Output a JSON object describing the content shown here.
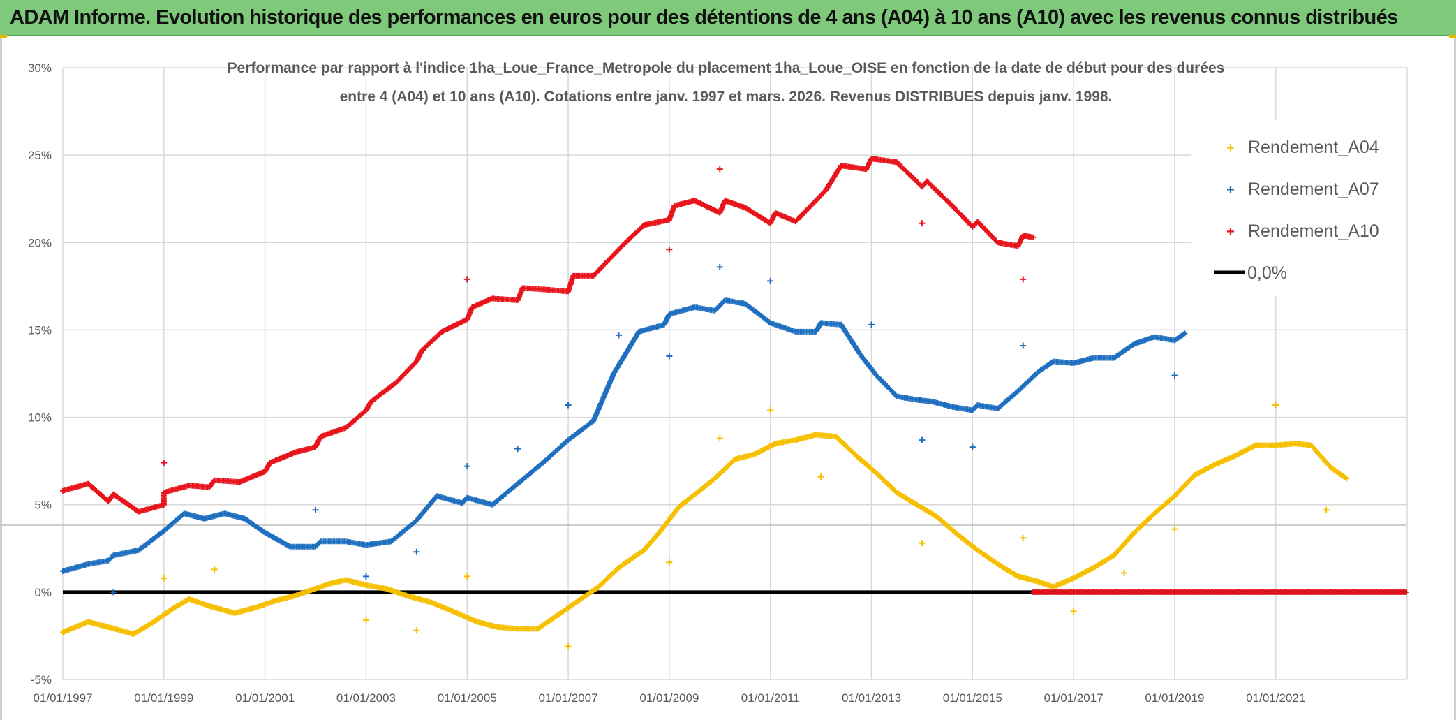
{
  "banner": {
    "title": "ADAM Informe. Evolution historique des performances en euros pour des détentions de 4 ans (A04) à 10 ans (A10) avec les revenus connus distribués"
  },
  "colors": {
    "banner_bg": "#7fc97a",
    "A04": "#f6c000",
    "A07": "#1f6fc0",
    "A10": "#e8141c",
    "zero_line": "#000000",
    "grid": "#d9d9d9"
  },
  "chart_data": {
    "type": "scatter",
    "title_line1": "Performance par rapport à l'indice 1ha_Loue_France_Metropole  du placement 1ha_Loue_OISE en fonction de la date de début pour des durées",
    "title_line2": "entre 4 (A04) et 10 ans (A10). Cotations entre janv. 1997 et mars. 2026. Revenus DISTRIBUES depuis janv. 1998.",
    "xlabel": "",
    "ylabel": "",
    "xlim": [
      1997.0,
      2023.6
    ],
    "ylim": [
      -5,
      30
    ],
    "x_ticks": [
      {
        "x": 1997,
        "label": "01/01/1997"
      },
      {
        "x": 1999,
        "label": "01/01/1999"
      },
      {
        "x": 2001,
        "label": "01/01/2001"
      },
      {
        "x": 2003,
        "label": "01/01/2003"
      },
      {
        "x": 2005,
        "label": "01/01/2005"
      },
      {
        "x": 2007,
        "label": "01/01/2007"
      },
      {
        "x": 2009,
        "label": "01/01/2009"
      },
      {
        "x": 2011,
        "label": "01/01/2011"
      },
      {
        "x": 2013,
        "label": "01/01/2013"
      },
      {
        "x": 2015,
        "label": "01/01/2015"
      },
      {
        "x": 2017,
        "label": "01/01/2017"
      },
      {
        "x": 2019,
        "label": "01/01/2019"
      },
      {
        "x": 2021,
        "label": "01/01/2021"
      }
    ],
    "y_ticks": [
      {
        "y": -5,
        "label": "-5%"
      },
      {
        "y": 0,
        "label": "0%"
      },
      {
        "y": 5,
        "label": "5%"
      },
      {
        "y": 10,
        "label": "10%"
      },
      {
        "y": 15,
        "label": "15%"
      },
      {
        "y": 20,
        "label": "20%"
      },
      {
        "y": 25,
        "label": "25%"
      },
      {
        "y": 30,
        "label": "30%"
      }
    ],
    "legend": {
      "position": "top-right",
      "entries": [
        {
          "label": "Rendement_A04",
          "series": "A04"
        },
        {
          "label": "Rendement_A07",
          "series": "A07"
        },
        {
          "label": "Rendement_A10",
          "series": "A10"
        },
        {
          "label": "0,0%",
          "series": "zero"
        }
      ]
    },
    "series": [
      {
        "name": "Rendement_A04",
        "key": "A04",
        "points": [
          [
            1997.0,
            -2.3
          ],
          [
            1997.5,
            -1.7
          ],
          [
            1997.9,
            -2.0
          ],
          [
            1998.4,
            -2.4
          ],
          [
            1998.8,
            -1.7
          ],
          [
            1999.2,
            -0.9
          ],
          [
            1999.5,
            -0.4
          ],
          [
            1999.9,
            -0.8
          ],
          [
            2000.4,
            -1.2
          ],
          [
            2000.8,
            -0.9
          ],
          [
            2001.2,
            -0.5
          ],
          [
            2001.6,
            -0.2
          ],
          [
            2002.0,
            0.2
          ],
          [
            2002.3,
            0.5
          ],
          [
            2002.6,
            0.7
          ],
          [
            2003.0,
            0.4
          ],
          [
            2003.4,
            0.2
          ],
          [
            2003.8,
            -0.2
          ],
          [
            2004.3,
            -0.6
          ],
          [
            2004.8,
            -1.2
          ],
          [
            2005.2,
            -1.7
          ],
          [
            2005.6,
            -2.0
          ],
          [
            2006.0,
            -2.1
          ],
          [
            2006.4,
            -2.1
          ],
          [
            2006.8,
            -1.3
          ],
          [
            2007.2,
            -0.5
          ],
          [
            2007.6,
            0.3
          ],
          [
            2008.0,
            1.4
          ],
          [
            2008.5,
            2.4
          ],
          [
            2008.8,
            3.4
          ],
          [
            2009.2,
            4.9
          ],
          [
            2009.6,
            5.8
          ],
          [
            2009.9,
            6.5
          ],
          [
            2010.3,
            7.6
          ],
          [
            2010.7,
            7.9
          ],
          [
            2011.1,
            8.5
          ],
          [
            2011.5,
            8.7
          ],
          [
            2011.9,
            9.0
          ],
          [
            2012.3,
            8.9
          ],
          [
            2012.7,
            7.8
          ],
          [
            2013.1,
            6.8
          ],
          [
            2013.5,
            5.7
          ],
          [
            2013.9,
            5.0
          ],
          [
            2014.3,
            4.3
          ],
          [
            2014.7,
            3.3
          ],
          [
            2015.1,
            2.4
          ],
          [
            2015.5,
            1.6
          ],
          [
            2015.9,
            0.9
          ],
          [
            2016.3,
            0.6
          ],
          [
            2016.6,
            0.3
          ],
          [
            2017.0,
            0.8
          ],
          [
            2017.4,
            1.4
          ],
          [
            2017.8,
            2.1
          ],
          [
            2018.2,
            3.4
          ],
          [
            2018.6,
            4.5
          ],
          [
            2019.0,
            5.5
          ],
          [
            2019.4,
            6.7
          ],
          [
            2019.8,
            7.3
          ],
          [
            2020.2,
            7.8
          ],
          [
            2020.6,
            8.4
          ],
          [
            2021.0,
            8.4
          ],
          [
            2021.4,
            8.5
          ],
          [
            2021.7,
            8.4
          ],
          [
            2022.1,
            7.1
          ],
          [
            2022.4,
            6.5
          ]
        ],
        "outliers": [
          [
            1999.0,
            0.8
          ],
          [
            2000.0,
            1.3
          ],
          [
            2003.0,
            -1.6
          ],
          [
            2004.0,
            -2.2
          ],
          [
            2005.0,
            0.9
          ],
          [
            2007.0,
            -3.1
          ],
          [
            2009.0,
            1.7
          ],
          [
            2010.0,
            8.8
          ],
          [
            2011.0,
            10.4
          ],
          [
            2012.0,
            6.6
          ],
          [
            2014.0,
            2.8
          ],
          [
            2016.0,
            3.1
          ],
          [
            2017.0,
            -1.1
          ],
          [
            2018.0,
            1.1
          ],
          [
            2019.0,
            3.6
          ],
          [
            2021.0,
            10.7
          ],
          [
            2022.0,
            4.7
          ]
        ]
      },
      {
        "name": "Rendement_A07",
        "key": "A07",
        "points": [
          [
            1997.0,
            1.2
          ],
          [
            1997.5,
            1.6
          ],
          [
            1997.9,
            1.8
          ],
          [
            1998.0,
            2.1
          ],
          [
            1998.5,
            2.4
          ],
          [
            1999.0,
            3.5
          ],
          [
            1999.4,
            4.5
          ],
          [
            1999.8,
            4.2
          ],
          [
            2000.2,
            4.5
          ],
          [
            2000.6,
            4.2
          ],
          [
            2001.0,
            3.4
          ],
          [
            2001.5,
            2.6
          ],
          [
            2002.0,
            2.6
          ],
          [
            2002.1,
            2.9
          ],
          [
            2002.6,
            2.9
          ],
          [
            2003.0,
            2.7
          ],
          [
            2003.5,
            2.9
          ],
          [
            2004.0,
            4.1
          ],
          [
            2004.4,
            5.5
          ],
          [
            2004.9,
            5.1
          ],
          [
            2005.0,
            5.4
          ],
          [
            2005.5,
            5.0
          ],
          [
            2006.0,
            6.2
          ],
          [
            2006.5,
            7.4
          ],
          [
            2007.0,
            8.7
          ],
          [
            2007.5,
            9.8
          ],
          [
            2007.9,
            12.5
          ],
          [
            2008.4,
            14.9
          ],
          [
            2008.9,
            15.3
          ],
          [
            2009.0,
            15.9
          ],
          [
            2009.5,
            16.3
          ],
          [
            2009.9,
            16.1
          ],
          [
            2010.1,
            16.7
          ],
          [
            2010.5,
            16.5
          ],
          [
            2011.0,
            15.4
          ],
          [
            2011.5,
            14.9
          ],
          [
            2011.9,
            14.9
          ],
          [
            2012.0,
            15.4
          ],
          [
            2012.4,
            15.3
          ],
          [
            2012.8,
            13.5
          ],
          [
            2013.1,
            12.4
          ],
          [
            2013.5,
            11.2
          ],
          [
            2013.9,
            11.0
          ],
          [
            2014.2,
            10.9
          ],
          [
            2014.6,
            10.6
          ],
          [
            2015.0,
            10.4
          ],
          [
            2015.1,
            10.7
          ],
          [
            2015.5,
            10.5
          ],
          [
            2015.9,
            11.5
          ],
          [
            2016.3,
            12.6
          ],
          [
            2016.6,
            13.2
          ],
          [
            2017.0,
            13.1
          ],
          [
            2017.4,
            13.4
          ],
          [
            2017.8,
            13.4
          ],
          [
            2018.2,
            14.2
          ],
          [
            2018.6,
            14.6
          ],
          [
            2019.0,
            14.4
          ],
          [
            2019.2,
            14.8
          ]
        ],
        "outliers": [
          [
            1998.0,
            0.0
          ],
          [
            2002.0,
            4.7
          ],
          [
            2003.0,
            0.9
          ],
          [
            2004.0,
            2.3
          ],
          [
            2005.0,
            7.2
          ],
          [
            2006.0,
            8.2
          ],
          [
            2007.0,
            10.7
          ],
          [
            2008.0,
            14.7
          ],
          [
            2009.0,
            13.5
          ],
          [
            2010.0,
            18.6
          ],
          [
            2011.0,
            17.8
          ],
          [
            2013.0,
            15.3
          ],
          [
            2014.0,
            8.7
          ],
          [
            2015.0,
            8.3
          ],
          [
            2016.0,
            14.1
          ],
          [
            2019.0,
            12.4
          ]
        ]
      },
      {
        "name": "Rendement_A10",
        "key": "A10",
        "points": [
          [
            1997.0,
            5.8
          ],
          [
            1997.5,
            6.2
          ],
          [
            1997.9,
            5.2
          ],
          [
            1998.0,
            5.6
          ],
          [
            1998.5,
            4.6
          ],
          [
            1999.0,
            5.0
          ],
          [
            1999.0,
            5.7
          ],
          [
            1999.5,
            6.1
          ],
          [
            1999.9,
            6.0
          ],
          [
            2000.0,
            6.4
          ],
          [
            2000.5,
            6.3
          ],
          [
            2001.0,
            6.9
          ],
          [
            2001.1,
            7.4
          ],
          [
            2001.6,
            8.0
          ],
          [
            2002.0,
            8.3
          ],
          [
            2002.1,
            8.9
          ],
          [
            2002.6,
            9.4
          ],
          [
            2003.0,
            10.4
          ],
          [
            2003.1,
            10.9
          ],
          [
            2003.6,
            12.0
          ],
          [
            2004.0,
            13.2
          ],
          [
            2004.1,
            13.8
          ],
          [
            2004.5,
            14.9
          ],
          [
            2005.0,
            15.6
          ],
          [
            2005.1,
            16.3
          ],
          [
            2005.5,
            16.8
          ],
          [
            2006.0,
            16.7
          ],
          [
            2006.1,
            17.4
          ],
          [
            2006.6,
            17.3
          ],
          [
            2007.0,
            17.2
          ],
          [
            2007.1,
            18.1
          ],
          [
            2007.5,
            18.1
          ],
          [
            2007.9,
            19.3
          ],
          [
            2008.1,
            19.9
          ],
          [
            2008.5,
            21.0
          ],
          [
            2009.0,
            21.3
          ],
          [
            2009.1,
            22.1
          ],
          [
            2009.5,
            22.4
          ],
          [
            2010.0,
            21.7
          ],
          [
            2010.1,
            22.4
          ],
          [
            2010.5,
            22.0
          ],
          [
            2011.0,
            21.1
          ],
          [
            2011.1,
            21.7
          ],
          [
            2011.5,
            21.2
          ],
          [
            2011.9,
            22.4
          ],
          [
            2012.1,
            23.0
          ],
          [
            2012.4,
            24.4
          ],
          [
            2012.9,
            24.2
          ],
          [
            2013.0,
            24.8
          ],
          [
            2013.5,
            24.6
          ],
          [
            2014.0,
            23.2
          ],
          [
            2014.1,
            23.5
          ],
          [
            2014.6,
            22.1
          ],
          [
            2015.0,
            20.9
          ],
          [
            2015.1,
            21.2
          ],
          [
            2015.5,
            20.0
          ],
          [
            2015.9,
            19.8
          ],
          [
            2016.0,
            20.4
          ],
          [
            2016.2,
            20.3
          ]
        ],
        "outliers": [
          [
            1999.0,
            7.4
          ],
          [
            2005.0,
            17.9
          ],
          [
            2009.0,
            19.6
          ],
          [
            2010.0,
            24.2
          ],
          [
            2014.0,
            21.1
          ],
          [
            2016.0,
            17.9
          ]
        ],
        "zero_segment": [
          2016.2,
          2023.6
        ]
      }
    ],
    "reference_lines": [
      {
        "name": "0,0%",
        "y": 0
      }
    ]
  }
}
